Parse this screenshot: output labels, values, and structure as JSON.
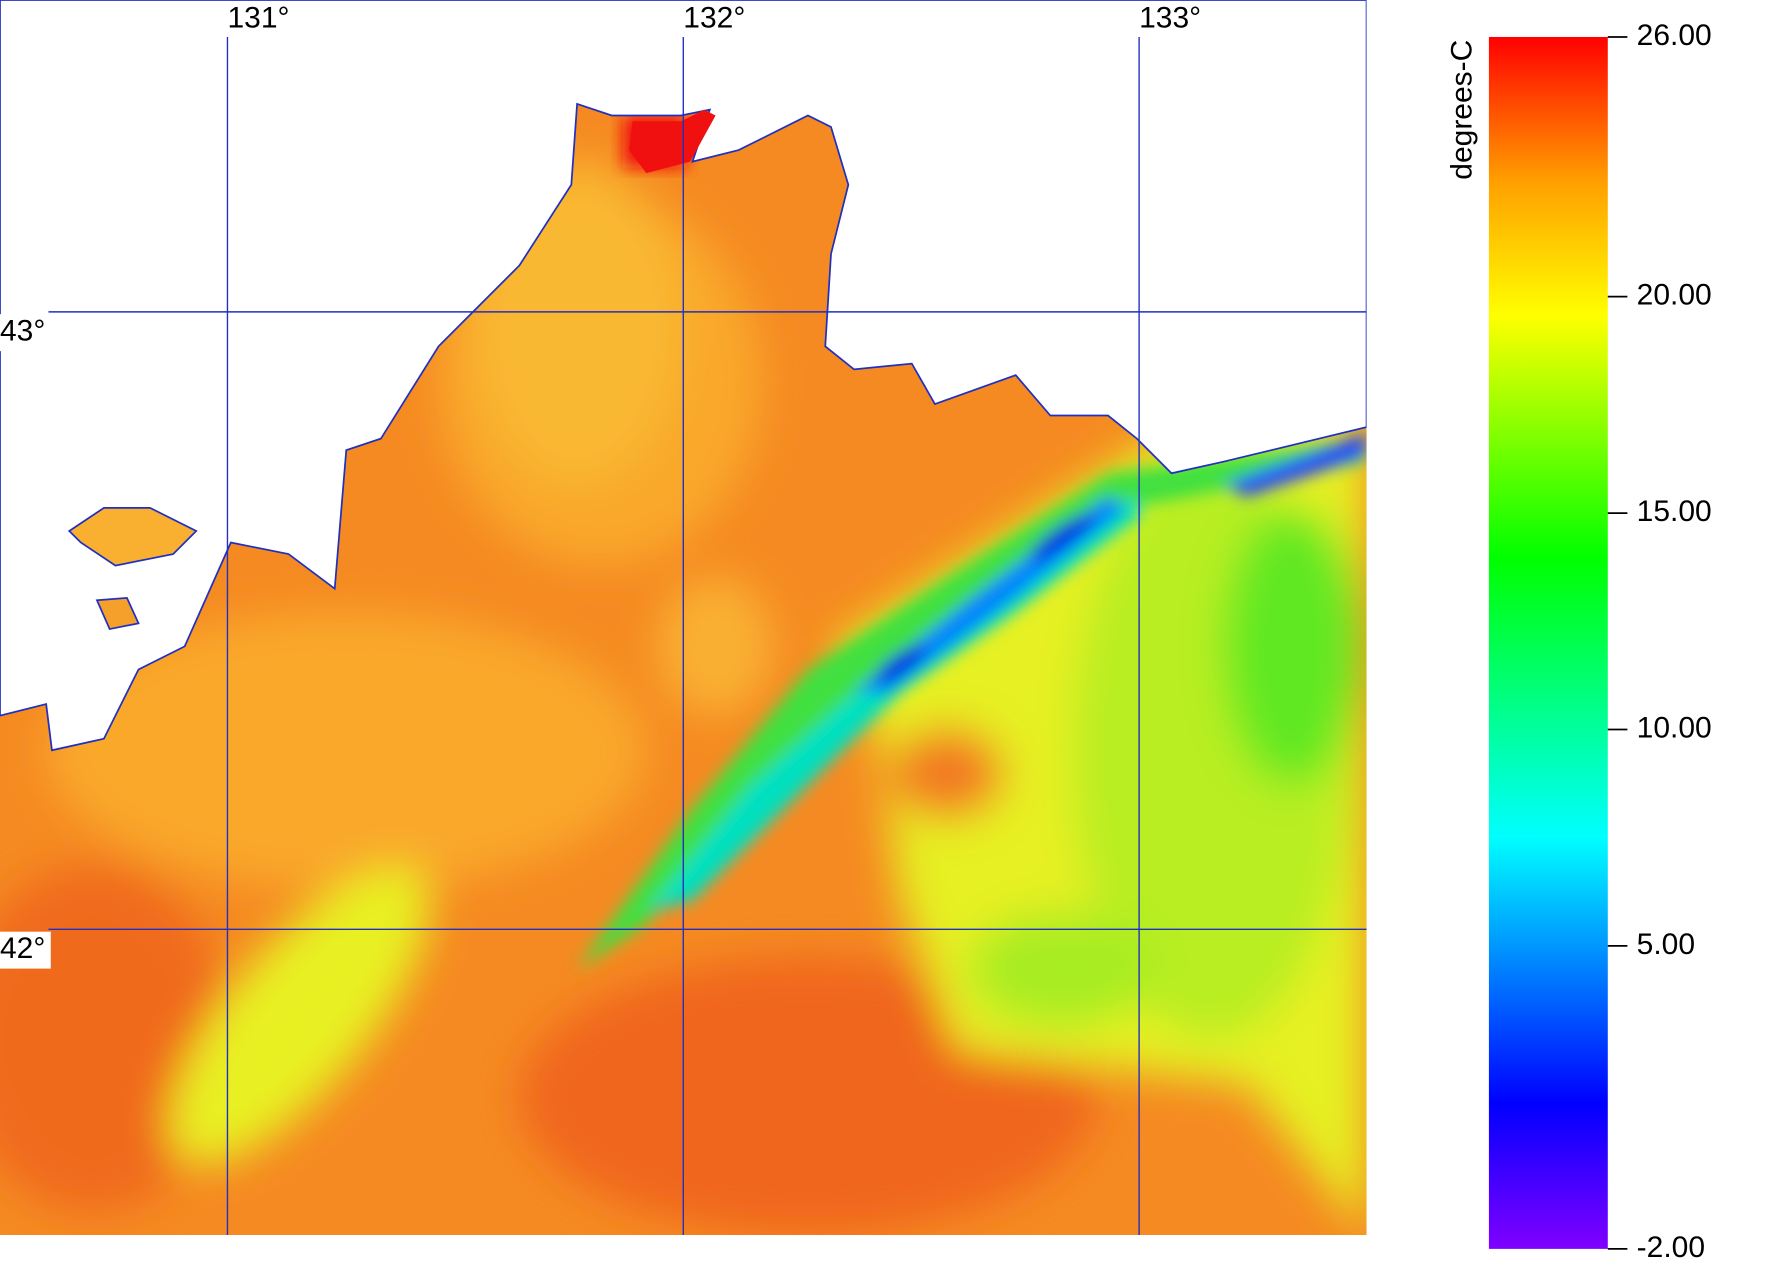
{
  "map": {
    "lon_range": [
      130.501,
      133.499
    ],
    "lat_range": [
      41.505,
      43.505
    ],
    "lon_ticks": [
      {
        "value": 131,
        "label": "131°"
      },
      {
        "value": 132,
        "label": "132°"
      },
      {
        "value": 133,
        "label": "133°"
      }
    ],
    "lat_ticks": [
      {
        "value": 43,
        "label": "43°"
      },
      {
        "value": 42,
        "label": "42°"
      }
    ],
    "grid_color": "#2030c0"
  },
  "colorbar": {
    "label": "degrees-C",
    "range": [
      -2,
      26
    ],
    "ticks": [
      {
        "value": 26,
        "label": "26.00"
      },
      {
        "value": 20,
        "label": "20.00"
      },
      {
        "value": 15,
        "label": "15.00"
      },
      {
        "value": 10,
        "label": "10.00"
      },
      {
        "value": 5,
        "label": "5.00"
      },
      {
        "value": -2,
        "label": "-2.00"
      }
    ]
  }
}
